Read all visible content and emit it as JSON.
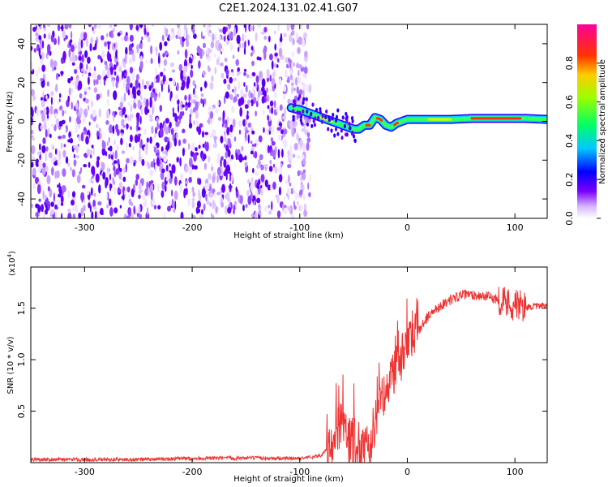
{
  "title": "C2E1.2024.131.02.41.G07",
  "chart_data": [
    {
      "type": "heatmap",
      "xlabel": "Height of straight line (km)",
      "ylabel": "Frequency (Hz)",
      "xlim": [
        -350,
        130
      ],
      "ylim": [
        -50,
        50
      ],
      "x_ticks": [
        -300,
        -200,
        -100,
        0,
        100
      ],
      "y_ticks": [
        -40,
        -20,
        0,
        20,
        40
      ],
      "noise_region_x": [
        -350,
        -90
      ],
      "signal_track": {
        "x": [
          -108,
          -100,
          -90,
          -80,
          -70,
          -60,
          -50,
          -45,
          -40,
          -35,
          -30,
          -25,
          -20,
          -15,
          -10,
          -5,
          0,
          20,
          40,
          60,
          80,
          100,
          110,
          130
        ],
        "y": [
          7,
          6,
          4,
          2,
          0,
          -2,
          -4,
          -4,
          -2,
          -2,
          2,
          1,
          -2,
          -3,
          -1,
          0,
          1,
          1,
          1,
          1.5,
          1.5,
          1.5,
          1.5,
          1
        ]
      },
      "colorbar": {
        "label": "Normalized spectral amplitude",
        "range": [
          0,
          1
        ],
        "ticks": [
          "0.0",
          "0.2",
          "0.4",
          "0.6",
          "0.8"
        ],
        "tick_values": [
          0.0,
          0.2,
          0.4,
          0.6,
          0.8
        ]
      }
    },
    {
      "type": "line",
      "xlabel": "Height of straight line (km)",
      "ylabel": "SNR (10 * v/v)",
      "multiplier": "(x10",
      "multiplier_exp": "4",
      "multiplier_close": ")",
      "xlim": [
        -350,
        130
      ],
      "ylim": [
        0,
        19000
      ],
      "x_ticks": [
        -300,
        -200,
        -100,
        0,
        100
      ],
      "y_ticks": [
        "0.5",
        "1.0",
        "1.5"
      ],
      "y_tick_values": [
        5000,
        10000,
        15000
      ],
      "color": "#ee3333",
      "series": [
        {
          "x": [
            -350,
            -300,
            -250,
            -200,
            -150,
            -100,
            -80,
            -70,
            -65,
            -60,
            -55,
            -50,
            -45,
            -40,
            -35,
            -30,
            -25,
            -20,
            -15,
            -10,
            -5,
            0,
            10,
            20,
            30,
            40,
            50,
            60,
            70,
            80,
            90,
            100,
            110,
            120,
            130
          ],
          "values": [
            300,
            300,
            300,
            400,
            450,
            400,
            700,
            1800,
            3800,
            2600,
            2000,
            1800,
            1500,
            1200,
            700,
            4500,
            5800,
            7300,
            8500,
            9200,
            10000,
            11200,
            12800,
            14300,
            15200,
            15800,
            16300,
            16300,
            16200,
            16000,
            15700,
            15300,
            15100,
            15200,
            15200
          ]
        }
      ]
    }
  ]
}
